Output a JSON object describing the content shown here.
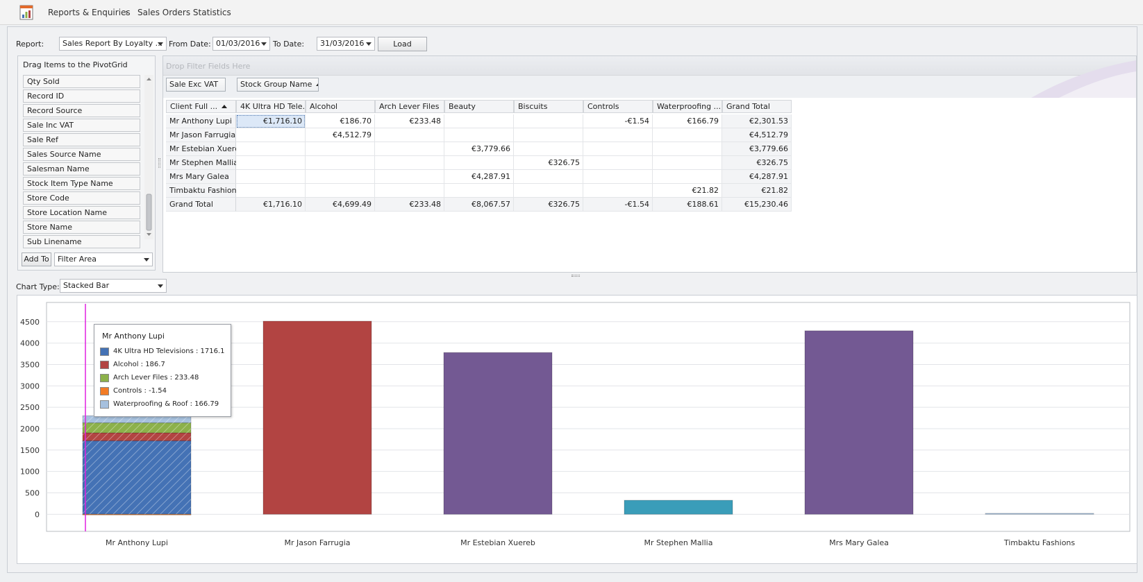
{
  "breadcrumb": {
    "root": "Reports & Enquiries",
    "separator": "›",
    "current": "Sales Orders Statistics"
  },
  "toolbar": {
    "report_label": "Report:",
    "report_value": "Sales Report By Loyalty ...",
    "from_label": "From Date:",
    "from_value": "01/03/2016",
    "to_label": "To Date:",
    "to_value": "31/03/2016",
    "load_label": "Load"
  },
  "field_list": {
    "title": "Drag Items to the PivotGrid",
    "items": [
      "Qty Sold",
      "Record ID",
      "Record Source",
      "Sale Inc VAT",
      "Sale Ref",
      "Sales Source Name",
      "Salesman Name",
      "Stock Item Type Name",
      "Store Code",
      "Store Location Name",
      "Store Name",
      "Sub Linename"
    ],
    "add_to_label": "Add To",
    "area_value": "Filter Area"
  },
  "pivot": {
    "filter_placeholder": "Drop Filter Fields Here",
    "data_field": "Sale Exc VAT",
    "column_field": "Stock Group Name",
    "row_field": "Client Full ...",
    "columns": [
      "4K Ultra HD Tele...",
      "Alcohol",
      "Arch Lever Files",
      "Beauty",
      "Biscuits",
      "Controls",
      "Waterproofing ...",
      "Grand Total"
    ],
    "rows": [
      {
        "name": "Mr  Anthony Lupi",
        "cells": [
          "€1,716.10",
          "€186.70",
          "€233.48",
          "",
          "",
          "-€1.54",
          "€166.79",
          "€2,301.53"
        ]
      },
      {
        "name": "Mr  Jason Farrugia",
        "cells": [
          "",
          "€4,512.79",
          "",
          "",
          "",
          "",
          "",
          "€4,512.79"
        ]
      },
      {
        "name": "Mr Estebian Xuereb",
        "cells": [
          "",
          "",
          "",
          "€3,779.66",
          "",
          "",
          "",
          "€3,779.66"
        ]
      },
      {
        "name": "Mr Stephen Mallia",
        "cells": [
          "",
          "",
          "",
          "",
          "€326.75",
          "",
          "",
          "€326.75"
        ]
      },
      {
        "name": "Mrs Mary Galea",
        "cells": [
          "",
          "",
          "",
          "€4,287.91",
          "",
          "",
          "",
          "€4,287.91"
        ]
      },
      {
        "name": "Timbaktu Fashions",
        "cells": [
          "",
          "",
          "",
          "",
          "",
          "",
          "€21.82",
          "€21.82"
        ]
      }
    ],
    "total_row": {
      "name": "Grand Total",
      "cells": [
        "€1,716.10",
        "€4,699.49",
        "€233.48",
        "€8,067.57",
        "€326.75",
        "-€1.54",
        "€188.61",
        "€15,230.46"
      ]
    }
  },
  "chart_panel": {
    "type_label": "Chart Type:",
    "type_value": "Stacked Bar"
  },
  "chart_data": {
    "type": "bar",
    "stacked": true,
    "categories": [
      "Mr  Anthony Lupi",
      "Mr Jason Farrugia",
      "Mr Estebian Xuereb",
      "Mr Stephen Mallia",
      "Mrs Mary Galea",
      "Timbaktu Fashions"
    ],
    "series": [
      {
        "name": "4K Ultra HD Televisions",
        "color": "#4472b5",
        "values": [
          1716.1,
          0,
          0,
          0,
          0,
          0
        ]
      },
      {
        "name": "Alcohol",
        "color": "#b24442",
        "values": [
          186.7,
          4512.79,
          0,
          0,
          0,
          0
        ]
      },
      {
        "name": "Arch Lever Files",
        "color": "#8cb14a",
        "values": [
          233.48,
          0,
          0,
          0,
          0,
          0
        ]
      },
      {
        "name": "Beauty",
        "color": "#735993",
        "values": [
          0,
          0,
          3779.66,
          0,
          4287.91,
          0
        ]
      },
      {
        "name": "Biscuits",
        "color": "#3a9db9",
        "values": [
          0,
          0,
          0,
          326.75,
          0,
          0
        ]
      },
      {
        "name": "Controls",
        "color": "#f27b25",
        "values": [
          -1.54,
          0,
          0,
          0,
          0,
          0
        ]
      },
      {
        "name": "Waterproofing & Roof",
        "color": "#a6c0de",
        "values": [
          166.79,
          0,
          0,
          0,
          0,
          21.82
        ]
      }
    ],
    "yticks": [
      0,
      500,
      1000,
      1500,
      2000,
      2500,
      3000,
      3500,
      4000,
      4500
    ],
    "ylim": [
      -400,
      4950
    ],
    "grid": true,
    "legend": "none",
    "tooltip": {
      "title": "Mr  Anthony Lupi",
      "entries": [
        {
          "text": "4K Ultra HD Televisions : 1716.1",
          "color": "#4472b5"
        },
        {
          "text": "Alcohol : 186.7",
          "color": "#b24442"
        },
        {
          "text": "Arch Lever Files : 233.48",
          "color": "#8cb14a"
        },
        {
          "text": "Controls : -1.54",
          "color": "#f27b25"
        },
        {
          "text": "Waterproofing & Roof : 166.79",
          "color": "#a6c0de"
        }
      ]
    }
  }
}
